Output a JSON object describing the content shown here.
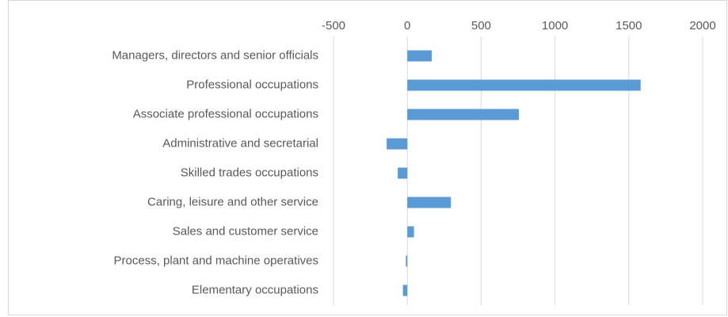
{
  "chart_data": {
    "type": "bar",
    "orientation": "horizontal",
    "categories": [
      "Managers, directors and senior officials",
      "Professional occupations",
      "Associate professional occupations",
      "Administrative and secretarial",
      "Skilled trades occupations",
      "Caring, leisure and other service",
      "Sales and customer service",
      "Process, plant and machine operatives",
      "Elementary occupations"
    ],
    "values": [
      165,
      1580,
      755,
      -140,
      -65,
      295,
      45,
      -10,
      -30
    ],
    "color": "#5b9bd5",
    "xlim": [
      -500,
      2000
    ],
    "xticks": [
      -500,
      0,
      500,
      1000,
      1500,
      2000
    ],
    "grid": true
  }
}
